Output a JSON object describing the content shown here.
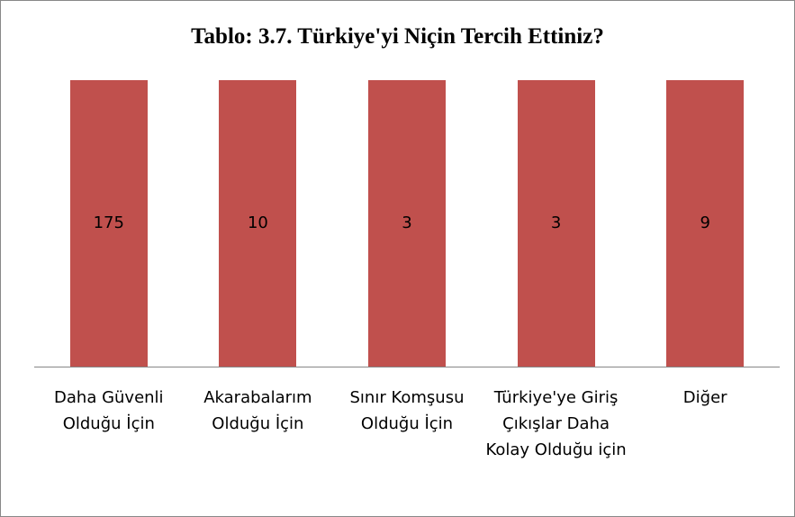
{
  "chart_data": {
    "type": "bar",
    "stacking": "percent",
    "title": "Tablo: 3.7. Türkiye'yi Niçin Tercih Ettiniz?",
    "categories": [
      "Daha Güvenli Olduğu İçin",
      "Akarabalarım Olduğu İçin",
      "Sınır Komşusu Olduğu İçin",
      "Türkiye'ye Giriş Çıkışlar Daha Kolay Olduğu için",
      "Diğer"
    ],
    "values": [
      175,
      10,
      3,
      3,
      9
    ],
    "color": "#c0504d"
  }
}
